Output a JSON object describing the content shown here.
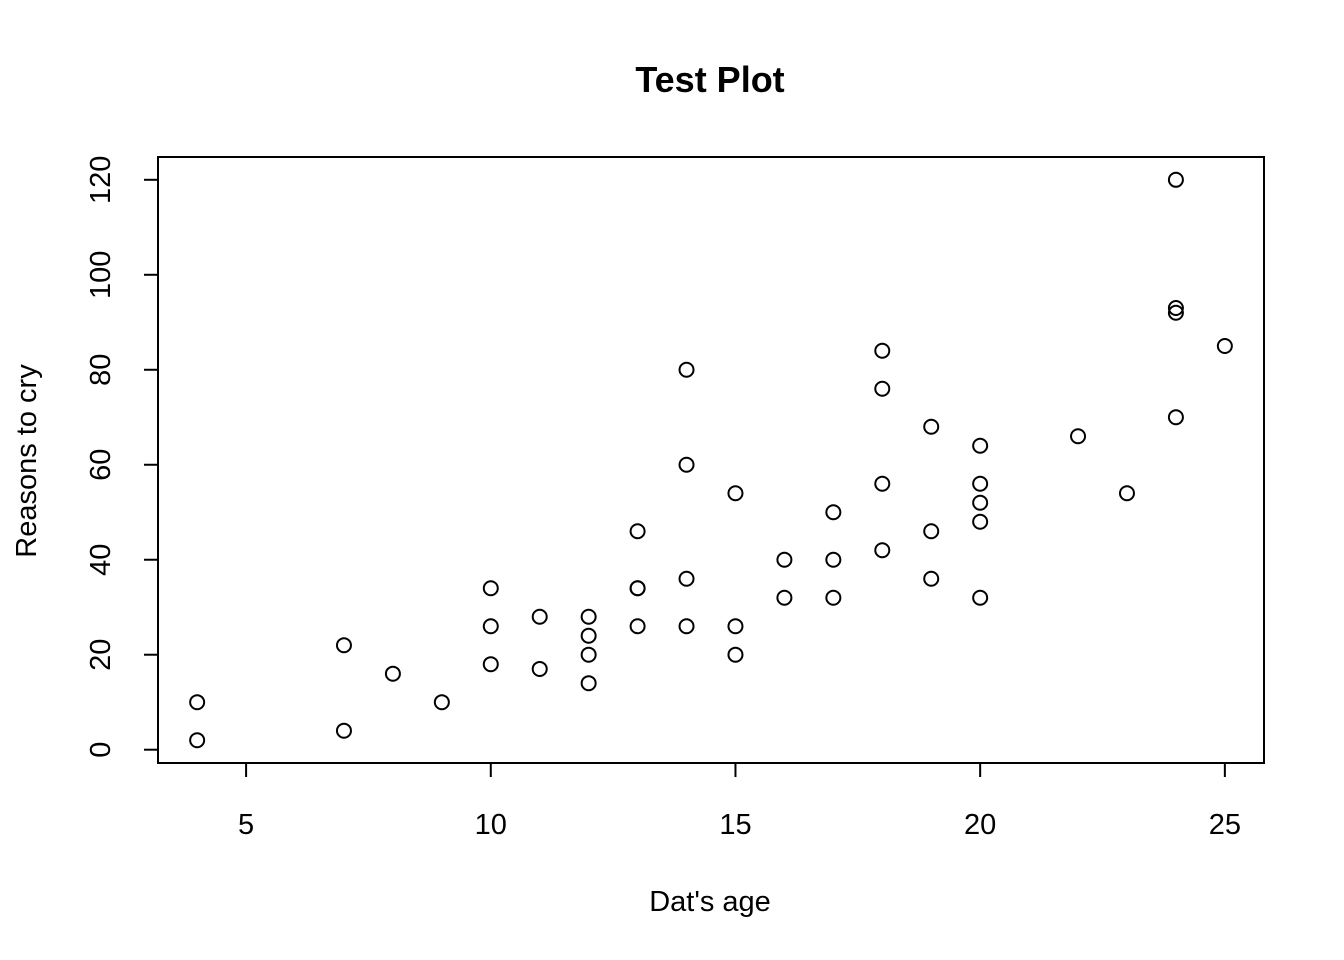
{
  "chart_data": {
    "type": "scatter",
    "title": "Test Plot",
    "xlabel": "Dat's age",
    "ylabel": "Reasons to cry",
    "xlim": [
      3.2,
      25.8
    ],
    "ylim": [
      -2.8,
      124.8
    ],
    "xticks": [
      5,
      10,
      15,
      20,
      25
    ],
    "yticks": [
      0,
      20,
      40,
      60,
      80,
      100,
      120
    ],
    "grid": false,
    "legend": "none",
    "marker": "open-circle",
    "color": "#000000",
    "points": [
      {
        "x": 4,
        "y": 2
      },
      {
        "x": 4,
        "y": 10
      },
      {
        "x": 7,
        "y": 4
      },
      {
        "x": 7,
        "y": 22
      },
      {
        "x": 8,
        "y": 16
      },
      {
        "x": 9,
        "y": 10
      },
      {
        "x": 10,
        "y": 18
      },
      {
        "x": 10,
        "y": 26
      },
      {
        "x": 10,
        "y": 34
      },
      {
        "x": 11,
        "y": 17
      },
      {
        "x": 11,
        "y": 28
      },
      {
        "x": 12,
        "y": 14
      },
      {
        "x": 12,
        "y": 20
      },
      {
        "x": 12,
        "y": 24
      },
      {
        "x": 12,
        "y": 28
      },
      {
        "x": 13,
        "y": 26
      },
      {
        "x": 13,
        "y": 34
      },
      {
        "x": 13,
        "y": 34
      },
      {
        "x": 13,
        "y": 46
      },
      {
        "x": 14,
        "y": 26
      },
      {
        "x": 14,
        "y": 36
      },
      {
        "x": 14,
        "y": 60
      },
      {
        "x": 14,
        "y": 80
      },
      {
        "x": 15,
        "y": 20
      },
      {
        "x": 15,
        "y": 26
      },
      {
        "x": 15,
        "y": 54
      },
      {
        "x": 16,
        "y": 32
      },
      {
        "x": 16,
        "y": 40
      },
      {
        "x": 17,
        "y": 32
      },
      {
        "x": 17,
        "y": 40
      },
      {
        "x": 17,
        "y": 50
      },
      {
        "x": 18,
        "y": 42
      },
      {
        "x": 18,
        "y": 56
      },
      {
        "x": 18,
        "y": 76
      },
      {
        "x": 18,
        "y": 84
      },
      {
        "x": 19,
        "y": 36
      },
      {
        "x": 19,
        "y": 46
      },
      {
        "x": 19,
        "y": 68
      },
      {
        "x": 20,
        "y": 32
      },
      {
        "x": 20,
        "y": 48
      },
      {
        "x": 20,
        "y": 52
      },
      {
        "x": 20,
        "y": 56
      },
      {
        "x": 20,
        "y": 64
      },
      {
        "x": 22,
        "y": 66
      },
      {
        "x": 23,
        "y": 54
      },
      {
        "x": 24,
        "y": 70
      },
      {
        "x": 24,
        "y": 92
      },
      {
        "x": 24,
        "y": 93
      },
      {
        "x": 24,
        "y": 120
      },
      {
        "x": 25,
        "y": 85
      }
    ]
  }
}
